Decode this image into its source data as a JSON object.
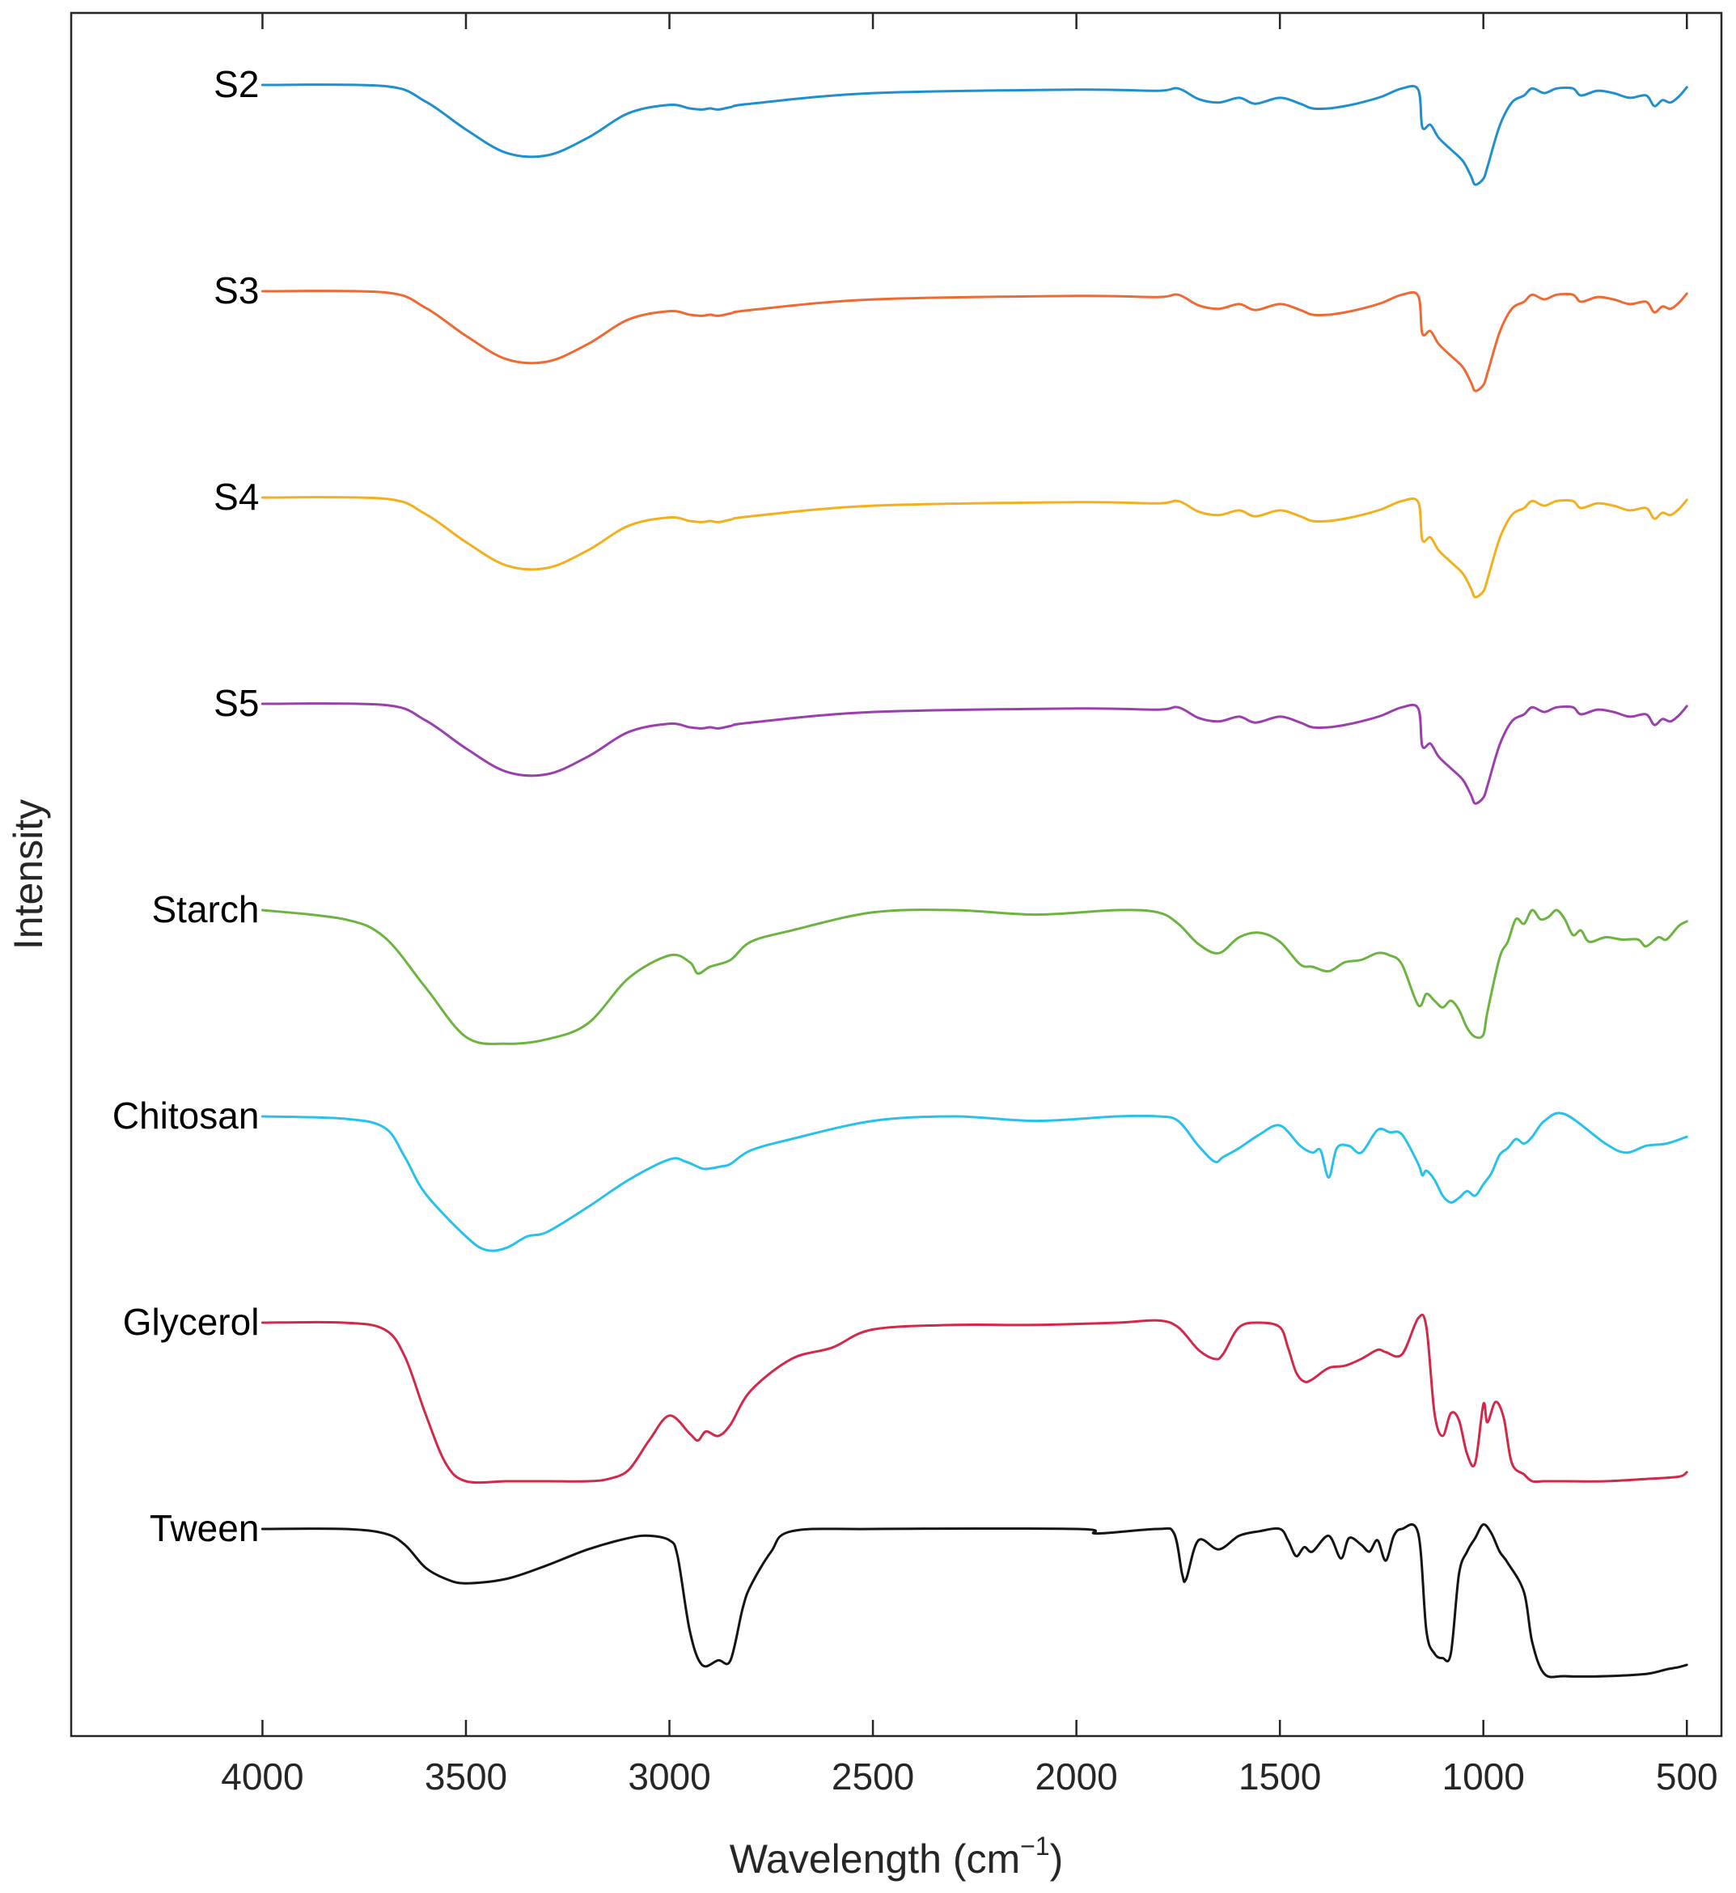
{
  "chart_data": {
    "type": "line",
    "title": "",
    "xlabel": "Wavelength",
    "xlabel_unit_base": "(cm",
    "xlabel_unit_exp": "−1",
    "xlabel_unit_close": ")",
    "ylabel": "Intensity",
    "xlim": [
      4470,
      415
    ],
    "x_reversed": true,
    "grid": false,
    "legend": "none (series labelled at left end of each trace)",
    "x_ticks": [
      4000,
      3500,
      3000,
      2500,
      2000,
      1500,
      1000,
      500
    ],
    "x_tick_labels": [
      "4000",
      "3500",
      "3000",
      "2500",
      "2000",
      "1500",
      "1000",
      "500"
    ],
    "note": "Traces are vertically offset; intensity values are normalized transmittance-like units (1 = baseline, lower = absorption band), not absolute.",
    "series": [
      {
        "name": "S2",
        "color": "#1f8fce",
        "offset_index": 0,
        "depth_scale": 0.44,
        "x": [
          4000,
          3700,
          3600,
          3500,
          3400,
          3300,
          3200,
          3100,
          3000,
          2950,
          2920,
          2900,
          2880,
          2850,
          2800,
          2500,
          2000,
          1800,
          1750,
          1700,
          1650,
          1600,
          1560,
          1500,
          1450,
          1420,
          1380,
          1340,
          1300,
          1250,
          1200,
          1160,
          1150,
          1130,
          1110,
          1080,
          1050,
          1030,
          1020,
          1000,
          990,
          960,
          930,
          900,
          880,
          850,
          820,
          780,
          760,
          720,
          680,
          640,
          600,
          580,
          560,
          540,
          520,
          500
        ],
        "values": [
          1.0,
          0.99,
          0.86,
          0.62,
          0.42,
          0.4,
          0.55,
          0.76,
          0.83,
          0.8,
          0.79,
          0.8,
          0.79,
          0.81,
          0.84,
          0.93,
          0.96,
          0.95,
          0.97,
          0.88,
          0.85,
          0.89,
          0.84,
          0.89,
          0.84,
          0.8,
          0.8,
          0.82,
          0.85,
          0.9,
          0.97,
          0.96,
          0.64,
          0.66,
          0.55,
          0.45,
          0.35,
          0.22,
          0.15,
          0.2,
          0.3,
          0.65,
          0.85,
          0.91,
          0.97,
          0.93,
          0.97,
          0.97,
          0.91,
          0.95,
          0.93,
          0.89,
          0.91,
          0.82,
          0.87,
          0.85,
          0.9,
          0.98
        ]
      },
      {
        "name": "S3",
        "color": "#ef6a33",
        "offset_index": 1,
        "depth_scale": 0.44,
        "x": [
          4000,
          3700,
          3600,
          3500,
          3400,
          3300,
          3200,
          3100,
          3000,
          2950,
          2920,
          2900,
          2880,
          2850,
          2800,
          2500,
          2000,
          1800,
          1750,
          1700,
          1650,
          1600,
          1560,
          1500,
          1450,
          1420,
          1380,
          1340,
          1300,
          1250,
          1200,
          1160,
          1150,
          1130,
          1110,
          1080,
          1050,
          1030,
          1020,
          1000,
          990,
          960,
          930,
          900,
          880,
          850,
          820,
          780,
          760,
          720,
          680,
          640,
          600,
          580,
          560,
          540,
          520,
          500
        ],
        "values": [
          1.0,
          0.99,
          0.86,
          0.62,
          0.42,
          0.4,
          0.55,
          0.76,
          0.83,
          0.8,
          0.79,
          0.8,
          0.79,
          0.81,
          0.84,
          0.93,
          0.96,
          0.95,
          0.97,
          0.88,
          0.85,
          0.89,
          0.84,
          0.89,
          0.84,
          0.8,
          0.8,
          0.82,
          0.85,
          0.9,
          0.97,
          0.96,
          0.64,
          0.66,
          0.55,
          0.45,
          0.35,
          0.22,
          0.15,
          0.2,
          0.3,
          0.65,
          0.85,
          0.91,
          0.97,
          0.93,
          0.97,
          0.97,
          0.91,
          0.95,
          0.93,
          0.89,
          0.91,
          0.82,
          0.87,
          0.85,
          0.9,
          0.98
        ]
      },
      {
        "name": "S4",
        "color": "#f2b01e",
        "offset_index": 2,
        "depth_scale": 0.44,
        "x": [
          4000,
          3700,
          3600,
          3500,
          3400,
          3300,
          3200,
          3100,
          3000,
          2950,
          2920,
          2900,
          2880,
          2850,
          2800,
          2500,
          2000,
          1800,
          1750,
          1700,
          1650,
          1600,
          1560,
          1500,
          1450,
          1420,
          1380,
          1340,
          1300,
          1250,
          1200,
          1160,
          1150,
          1130,
          1110,
          1080,
          1050,
          1030,
          1020,
          1000,
          990,
          960,
          930,
          900,
          880,
          850,
          820,
          780,
          760,
          720,
          680,
          640,
          600,
          580,
          560,
          540,
          520,
          500
        ],
        "values": [
          1.0,
          0.99,
          0.86,
          0.62,
          0.42,
          0.4,
          0.55,
          0.76,
          0.83,
          0.8,
          0.79,
          0.8,
          0.79,
          0.81,
          0.84,
          0.93,
          0.96,
          0.95,
          0.97,
          0.88,
          0.85,
          0.89,
          0.84,
          0.89,
          0.84,
          0.8,
          0.8,
          0.82,
          0.85,
          0.9,
          0.97,
          0.96,
          0.64,
          0.66,
          0.55,
          0.45,
          0.35,
          0.22,
          0.15,
          0.2,
          0.3,
          0.65,
          0.85,
          0.91,
          0.97,
          0.93,
          0.97,
          0.97,
          0.91,
          0.95,
          0.93,
          0.89,
          0.91,
          0.82,
          0.87,
          0.85,
          0.9,
          0.98
        ]
      },
      {
        "name": "S5",
        "color": "#9b3fad",
        "offset_index": 3,
        "depth_scale": 0.44,
        "x": [
          4000,
          3700,
          3600,
          3500,
          3400,
          3300,
          3200,
          3100,
          3000,
          2950,
          2920,
          2900,
          2880,
          2850,
          2800,
          2500,
          2000,
          1800,
          1750,
          1700,
          1650,
          1600,
          1560,
          1500,
          1450,
          1420,
          1380,
          1340,
          1300,
          1250,
          1200,
          1160,
          1150,
          1130,
          1110,
          1080,
          1050,
          1030,
          1020,
          1000,
          990,
          960,
          930,
          900,
          880,
          850,
          820,
          780,
          760,
          720,
          680,
          640,
          600,
          580,
          560,
          540,
          520,
          500
        ],
        "values": [
          1.0,
          0.99,
          0.86,
          0.62,
          0.42,
          0.4,
          0.55,
          0.76,
          0.83,
          0.8,
          0.79,
          0.8,
          0.79,
          0.81,
          0.84,
          0.93,
          0.96,
          0.95,
          0.97,
          0.88,
          0.85,
          0.89,
          0.84,
          0.89,
          0.84,
          0.8,
          0.8,
          0.82,
          0.85,
          0.9,
          0.97,
          0.96,
          0.64,
          0.66,
          0.55,
          0.45,
          0.35,
          0.22,
          0.15,
          0.2,
          0.3,
          0.65,
          0.85,
          0.91,
          0.97,
          0.93,
          0.97,
          0.97,
          0.91,
          0.95,
          0.93,
          0.89,
          0.91,
          0.82,
          0.87,
          0.85,
          0.9,
          0.98
        ]
      },
      {
        "name": "Starch",
        "color": "#6db33f",
        "offset_index": 4,
        "depth_scale": 0.85,
        "x": [
          4000,
          3800,
          3700,
          3600,
          3500,
          3400,
          3300,
          3200,
          3100,
          3000,
          2950,
          2930,
          2900,
          2850,
          2800,
          2700,
          2500,
          2300,
          2100,
          1900,
          1800,
          1750,
          1700,
          1650,
          1600,
          1550,
          1500,
          1450,
          1420,
          1380,
          1340,
          1300,
          1260,
          1230,
          1200,
          1160,
          1140,
          1120,
          1100,
          1080,
          1060,
          1040,
          1020,
          1000,
          990,
          960,
          940,
          920,
          900,
          880,
          860,
          840,
          820,
          800,
          780,
          760,
          740,
          700,
          660,
          620,
          600,
          570,
          550,
          520,
          500
        ],
        "values": [
          1.0,
          0.96,
          0.88,
          0.66,
          0.44,
          0.41,
          0.43,
          0.5,
          0.7,
          0.8,
          0.77,
          0.72,
          0.75,
          0.78,
          0.86,
          0.91,
          0.99,
          1.0,
          0.98,
          1.0,
          0.99,
          0.94,
          0.85,
          0.81,
          0.88,
          0.9,
          0.86,
          0.76,
          0.75,
          0.73,
          0.77,
          0.78,
          0.81,
          0.8,
          0.76,
          0.58,
          0.63,
          0.6,
          0.57,
          0.6,
          0.56,
          0.48,
          0.44,
          0.45,
          0.55,
          0.79,
          0.86,
          0.96,
          0.94,
          1.0,
          0.96,
          0.97,
          1.0,
          0.96,
          0.89,
          0.91,
          0.86,
          0.88,
          0.87,
          0.87,
          0.84,
          0.88,
          0.87,
          0.93,
          0.95
        ]
      },
      {
        "name": "Chitosan",
        "color": "#27c1ec",
        "offset_index": 5,
        "depth_scale": 0.85,
        "x": [
          4000,
          3800,
          3700,
          3650,
          3600,
          3500,
          3450,
          3400,
          3350,
          3300,
          3200,
          3100,
          3000,
          2960,
          2920,
          2900,
          2870,
          2850,
          2800,
          2700,
          2500,
          2300,
          2100,
          1900,
          1800,
          1750,
          1700,
          1660,
          1640,
          1600,
          1550,
          1500,
          1450,
          1420,
          1400,
          1380,
          1360,
          1330,
          1300,
          1260,
          1230,
          1200,
          1160,
          1150,
          1140,
          1120,
          1100,
          1080,
          1060,
          1040,
          1020,
          1000,
          980,
          960,
          940,
          920,
          900,
          880,
          850,
          800,
          700,
          650,
          600,
          550,
          500
        ],
        "values": [
          1.0,
          0.99,
          0.95,
          0.82,
          0.66,
          0.47,
          0.41,
          0.42,
          0.47,
          0.49,
          0.6,
          0.72,
          0.81,
          0.8,
          0.77,
          0.77,
          0.78,
          0.79,
          0.85,
          0.9,
          0.98,
          1.0,
          0.98,
          1.0,
          1.0,
          0.98,
          0.87,
          0.8,
          0.82,
          0.86,
          0.92,
          0.96,
          0.87,
          0.84,
          0.85,
          0.73,
          0.86,
          0.87,
          0.84,
          0.94,
          0.93,
          0.92,
          0.79,
          0.74,
          0.76,
          0.72,
          0.65,
          0.62,
          0.64,
          0.67,
          0.65,
          0.7,
          0.75,
          0.83,
          0.86,
          0.9,
          0.88,
          0.91,
          0.98,
          1.01,
          0.88,
          0.84,
          0.87,
          0.88,
          0.91
        ]
      },
      {
        "name": "Glycerol",
        "color": "#d2284a",
        "offset_index": 6,
        "depth_scale": 0.85,
        "x": [
          4000,
          3800,
          3700,
          3650,
          3600,
          3550,
          3500,
          3400,
          3300,
          3200,
          3150,
          3100,
          3050,
          3000,
          2950,
          2930,
          2910,
          2880,
          2850,
          2800,
          2700,
          2600,
          2500,
          2300,
          2100,
          1900,
          1800,
          1750,
          1700,
          1660,
          1640,
          1600,
          1550,
          1500,
          1480,
          1460,
          1440,
          1420,
          1380,
          1340,
          1300,
          1260,
          1240,
          1200,
          1160,
          1140,
          1120,
          1100,
          1080,
          1060,
          1040,
          1020,
          1000,
          990,
          970,
          950,
          930,
          900,
          880,
          850,
          800,
          700,
          600,
          520,
          500
        ],
        "values": [
          1.0,
          1.0,
          0.97,
          0.85,
          0.6,
          0.38,
          0.3,
          0.3,
          0.3,
          0.3,
          0.31,
          0.35,
          0.48,
          0.59,
          0.51,
          0.48,
          0.52,
          0.5,
          0.55,
          0.7,
          0.84,
          0.89,
          0.97,
          0.99,
          0.99,
          1.0,
          1.01,
          0.98,
          0.88,
          0.84,
          0.86,
          0.98,
          1.0,
          0.98,
          0.89,
          0.78,
          0.74,
          0.75,
          0.8,
          0.81,
          0.84,
          0.88,
          0.87,
          0.86,
          1.02,
          0.98,
          0.6,
          0.5,
          0.6,
          0.57,
          0.42,
          0.38,
          0.64,
          0.56,
          0.65,
          0.58,
          0.38,
          0.33,
          0.3,
          0.3,
          0.3,
          0.3,
          0.31,
          0.32,
          0.34
        ]
      },
      {
        "name": "Tween",
        "color": "#141414",
        "offset_index": 7,
        "depth_scale": 0.85,
        "x": [
          4000,
          3800,
          3700,
          3650,
          3600,
          3550,
          3500,
          3400,
          3300,
          3200,
          3100,
          3050,
          3000,
          2980,
          2950,
          2920,
          2880,
          2850,
          2820,
          2800,
          2750,
          2700,
          2500,
          2000,
          1950,
          1800,
          1760,
          1740,
          1730,
          1700,
          1650,
          1600,
          1550,
          1500,
          1480,
          1460,
          1440,
          1420,
          1380,
          1350,
          1330,
          1300,
          1280,
          1260,
          1240,
          1220,
          1200,
          1160,
          1140,
          1120,
          1100,
          1080,
          1060,
          1040,
          1020,
          1000,
          980,
          960,
          940,
          900,
          880,
          850,
          800,
          700,
          600,
          550,
          520,
          500
        ],
        "values": [
          1.0,
          1.0,
          0.98,
          0.93,
          0.83,
          0.78,
          0.76,
          0.78,
          0.84,
          0.91,
          0.96,
          0.97,
          0.95,
          0.88,
          0.55,
          0.4,
          0.42,
          0.42,
          0.65,
          0.75,
          0.9,
          0.99,
          1.0,
          1.0,
          0.98,
          1.0,
          0.98,
          0.8,
          0.78,
          0.95,
          0.91,
          0.97,
          0.99,
          1.0,
          0.95,
          0.88,
          0.92,
          0.9,
          0.97,
          0.87,
          0.96,
          0.93,
          0.9,
          0.95,
          0.86,
          0.97,
          1.0,
          0.98,
          0.55,
          0.45,
          0.43,
          0.45,
          0.8,
          0.9,
          0.96,
          1.02,
          0.98,
          0.9,
          0.85,
          0.72,
          0.5,
          0.36,
          0.35,
          0.35,
          0.36,
          0.38,
          0.39,
          0.4
        ]
      }
    ]
  }
}
